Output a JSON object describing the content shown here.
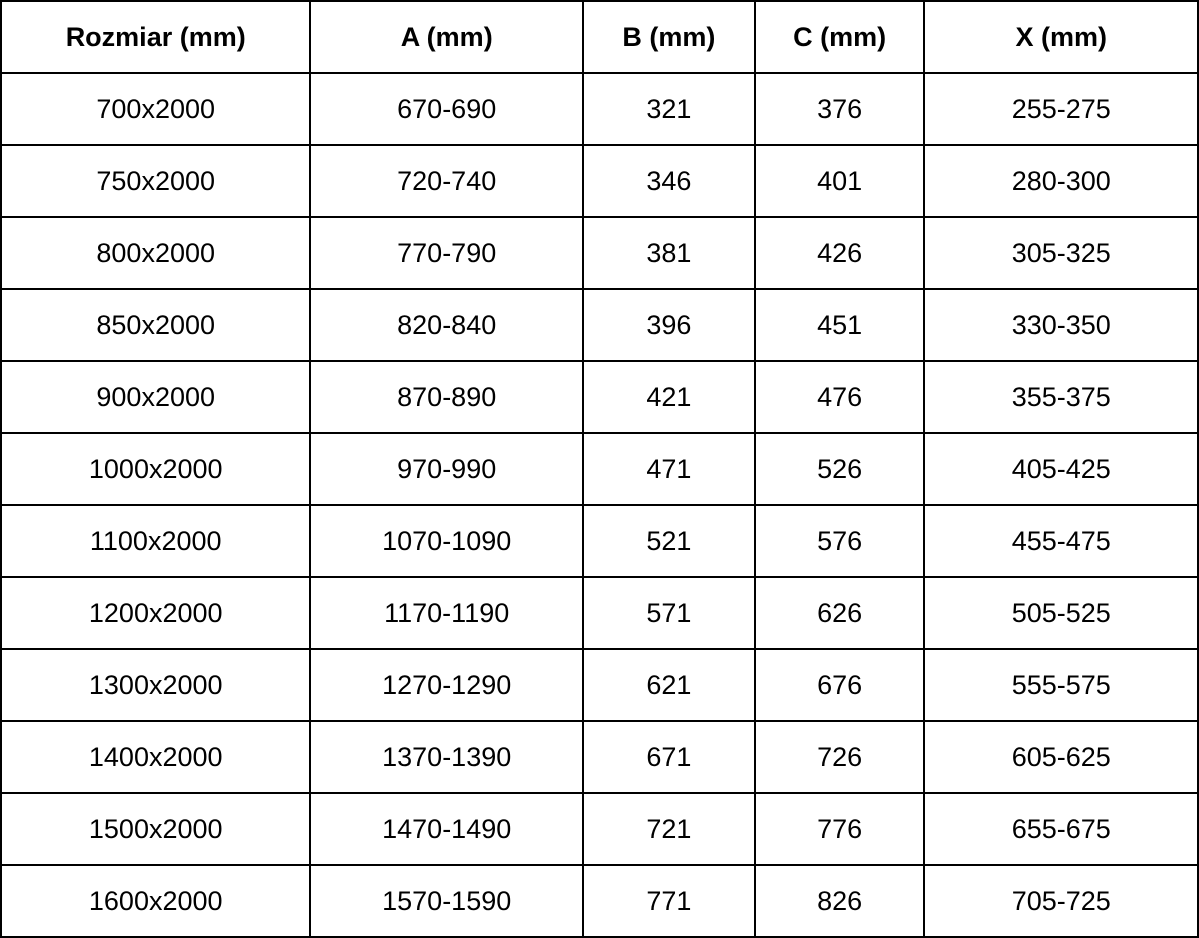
{
  "table": {
    "columns": [
      {
        "key": "rozmiar",
        "label": "Rozmiar (mm)"
      },
      {
        "key": "a",
        "label": "A (mm)"
      },
      {
        "key": "b",
        "label": "B (mm)"
      },
      {
        "key": "c",
        "label": "C (mm)"
      },
      {
        "key": "x",
        "label": "X (mm)"
      }
    ],
    "rows": [
      [
        "700x2000",
        "670-690",
        "321",
        "376",
        "255-275"
      ],
      [
        "750x2000",
        "720-740",
        "346",
        "401",
        "280-300"
      ],
      [
        "800x2000",
        "770-790",
        "381",
        "426",
        "305-325"
      ],
      [
        "850x2000",
        "820-840",
        "396",
        "451",
        "330-350"
      ],
      [
        "900x2000",
        "870-890",
        "421",
        "476",
        "355-375"
      ],
      [
        "1000x2000",
        "970-990",
        "471",
        "526",
        "405-425"
      ],
      [
        "1100x2000",
        "1070-1090",
        "521",
        "576",
        "455-475"
      ],
      [
        "1200x2000",
        "1170-1190",
        "571",
        "626",
        "505-525"
      ],
      [
        "1300x2000",
        "1270-1290",
        "621",
        "676",
        "555-575"
      ],
      [
        "1400x2000",
        "1370-1390",
        "671",
        "726",
        "605-625"
      ],
      [
        "1500x2000",
        "1470-1490",
        "721",
        "776",
        "655-675"
      ],
      [
        "1600x2000",
        "1570-1590",
        "771",
        "826",
        "705-725"
      ]
    ],
    "colors": {
      "border": "#000000",
      "background": "#ffffff",
      "text": "#000000"
    }
  }
}
